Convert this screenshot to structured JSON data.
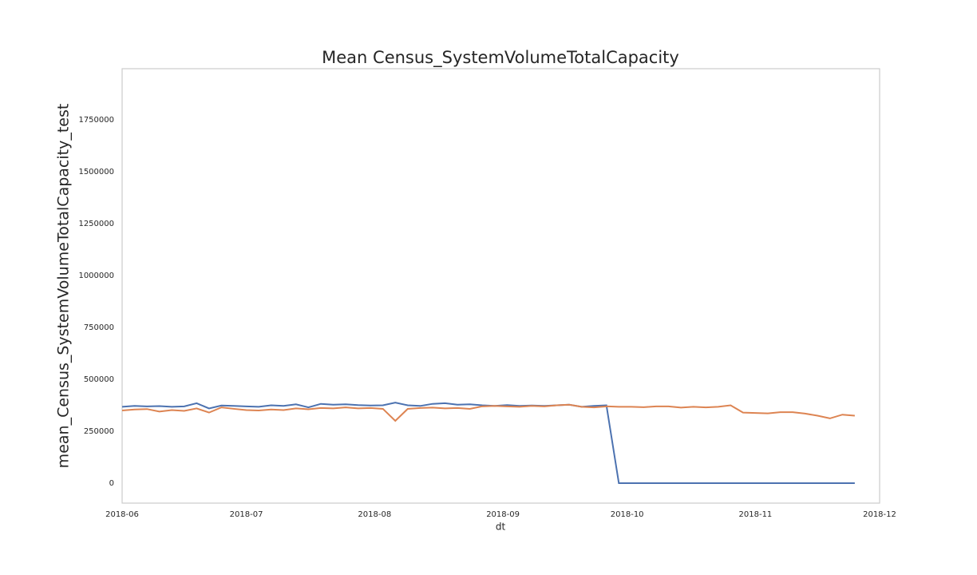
{
  "chart_data": {
    "type": "line",
    "title": "Mean Census_SystemVolumeTotalCapacity",
    "xlabel": "dt",
    "ylabel": "mean_Census_SystemVolumeTotalCapacity_test",
    "x": [
      "2018-06-01",
      "2018-06-04",
      "2018-06-07",
      "2018-06-10",
      "2018-06-13",
      "2018-06-16",
      "2018-06-19",
      "2018-06-22",
      "2018-06-25",
      "2018-06-28",
      "2018-07-01",
      "2018-07-04",
      "2018-07-07",
      "2018-07-10",
      "2018-07-13",
      "2018-07-16",
      "2018-07-19",
      "2018-07-22",
      "2018-07-25",
      "2018-07-28",
      "2018-07-31",
      "2018-08-03",
      "2018-08-06",
      "2018-08-09",
      "2018-08-12",
      "2018-08-15",
      "2018-08-18",
      "2018-08-21",
      "2018-08-24",
      "2018-08-27",
      "2018-08-30",
      "2018-09-02",
      "2018-09-05",
      "2018-09-08",
      "2018-09-11",
      "2018-09-14",
      "2018-09-17",
      "2018-09-20",
      "2018-09-23",
      "2018-09-26",
      "2018-09-29",
      "2018-10-02",
      "2018-10-05",
      "2018-10-08",
      "2018-10-11",
      "2018-10-14",
      "2018-10-17",
      "2018-10-20",
      "2018-10-23",
      "2018-10-26",
      "2018-10-29",
      "2018-11-01",
      "2018-11-04",
      "2018-11-07",
      "2018-11-10",
      "2018-11-13",
      "2018-11-16",
      "2018-11-19",
      "2018-11-22",
      "2018-11-25"
    ],
    "series": [
      {
        "color": "#4c72b0",
        "values": [
          368000,
          372000,
          370000,
          371000,
          368000,
          370000,
          385000,
          360000,
          374000,
          372000,
          370000,
          368000,
          375000,
          372000,
          380000,
          365000,
          382000,
          378000,
          380000,
          376000,
          374000,
          375000,
          388000,
          375000,
          372000,
          382000,
          385000,
          378000,
          380000,
          375000,
          372000,
          376000,
          372000,
          374000,
          372000,
          375000,
          378000,
          368000,
          372000,
          375000,
          0,
          0,
          0,
          0,
          0,
          0,
          0,
          0,
          0,
          0,
          0,
          0,
          0,
          0,
          0,
          0,
          0,
          0,
          0,
          0
        ]
      },
      {
        "color": "#dd8452",
        "values": [
          350000,
          355000,
          357000,
          345000,
          352000,
          348000,
          360000,
          340000,
          365000,
          358000,
          352000,
          350000,
          355000,
          352000,
          360000,
          356000,
          362000,
          360000,
          365000,
          360000,
          362000,
          358000,
          300000,
          358000,
          362000,
          364000,
          360000,
          362000,
          358000,
          370000,
          372000,
          370000,
          368000,
          372000,
          370000,
          375000,
          378000,
          368000,
          365000,
          370000,
          368000,
          368000,
          366000,
          370000,
          370000,
          364000,
          368000,
          365000,
          368000,
          375000,
          340000,
          338000,
          336000,
          342000,
          342000,
          335000,
          325000,
          312000,
          330000,
          325000
        ]
      }
    ],
    "xlim": [
      "2018-06-01",
      "2018-12-01"
    ],
    "xticks": [
      {
        "value": "2018-06-01",
        "label": "2018-06"
      },
      {
        "value": "2018-07-01",
        "label": "2018-07"
      },
      {
        "value": "2018-08-01",
        "label": "2018-08"
      },
      {
        "value": "2018-09-01",
        "label": "2018-09"
      },
      {
        "value": "2018-10-01",
        "label": "2018-10"
      },
      {
        "value": "2018-11-01",
        "label": "2018-11"
      },
      {
        "value": "2018-12-01",
        "label": "2018-12"
      }
    ],
    "ylim": [
      -96000,
      1996000
    ],
    "yticks": [
      0,
      250000,
      500000,
      750000,
      1000000,
      1250000,
      1500000,
      1750000
    ],
    "grid": false
  }
}
